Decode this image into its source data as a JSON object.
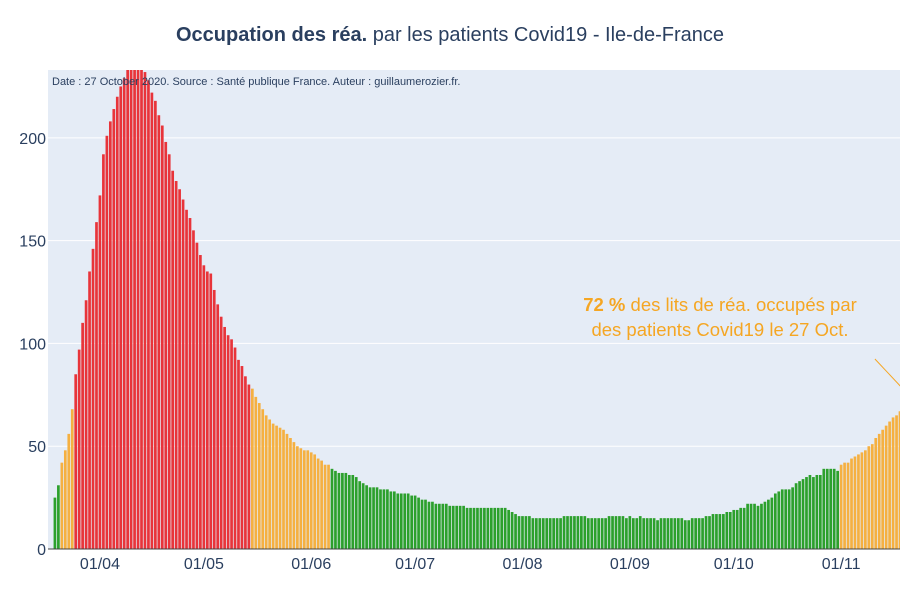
{
  "title": {
    "bold": "Occupation des réa.",
    "rest": " par les patients Covid19 - Ile-de-France"
  },
  "source_note": "Date : 27 October 2020. Source : Santé publique France. Auteur : guillaumerozier.fr.",
  "annotation": {
    "value": "72  %",
    "line1_rest": " des lits de réa. occupés par",
    "line2": "des patients Covid19 le 27 Oct."
  },
  "colors": {
    "plot_bg": "#e5ecf6",
    "grid": "#ffffff",
    "green": "#2ca02c",
    "orange": "#f5b041",
    "red": "#e8343a",
    "annotation": "#f5a623",
    "text": "#2a3f5f"
  },
  "chart_data": {
    "type": "bar",
    "x_start": "2020-03-19",
    "x_end": "2020-10-27",
    "x_range": [
      "2020-03-17",
      "2020-11-18"
    ],
    "ylim": [
      0,
      233
    ],
    "yticks": [
      0,
      50,
      100,
      150,
      200
    ],
    "xtick_labels": [
      "01/04",
      "01/05",
      "01/06",
      "01/07",
      "01/08",
      "01/09",
      "01/10",
      "01/11"
    ],
    "xtick_dates": [
      "2020-04-01",
      "2020-05-01",
      "2020-06-01",
      "2020-07-01",
      "2020-08-01",
      "2020-09-01",
      "2020-10-01",
      "2020-11-01"
    ],
    "values": [
      25,
      31,
      42,
      48,
      56,
      68,
      85,
      97,
      110,
      121,
      135,
      146,
      159,
      172,
      192,
      201,
      208,
      214,
      220,
      225,
      229,
      233,
      233,
      233,
      233,
      233,
      232,
      228,
      222,
      218,
      211,
      206,
      198,
      192,
      184,
      179,
      175,
      170,
      165,
      161,
      155,
      149,
      143,
      138,
      135,
      134,
      126,
      119,
      113,
      108,
      104,
      102,
      98,
      92,
      89,
      84,
      80,
      78,
      74,
      71,
      68,
      65,
      63,
      61,
      60,
      59,
      58,
      56,
      54,
      52,
      50,
      49,
      48,
      48,
      47,
      46,
      44,
      43,
      41,
      41,
      39,
      38,
      37,
      37,
      37,
      36,
      36,
      35,
      33,
      32,
      31,
      30,
      30,
      30,
      29,
      29,
      29,
      28,
      28,
      27,
      27,
      27,
      27,
      26,
      26,
      25,
      24,
      24,
      23,
      23,
      22,
      22,
      22,
      22,
      21,
      21,
      21,
      21,
      21,
      20,
      20,
      20,
      20,
      20,
      20,
      20,
      20,
      20,
      20,
      20,
      20,
      19,
      18,
      17,
      16,
      16,
      16,
      16,
      15,
      15,
      15,
      15,
      15,
      15,
      15,
      15,
      15,
      16,
      16,
      16,
      16,
      16,
      16,
      16,
      15,
      15,
      15,
      15,
      15,
      15,
      16,
      16,
      16,
      16,
      16,
      15,
      16,
      15,
      15,
      16,
      15,
      15,
      15,
      15,
      14,
      15,
      15,
      15,
      15,
      15,
      15,
      15,
      14,
      14,
      15,
      15,
      15,
      15,
      16,
      16,
      17,
      17,
      17,
      17,
      18,
      18,
      19,
      19,
      20,
      20,
      22,
      22,
      22,
      21,
      22,
      23,
      24,
      25,
      27,
      28,
      29,
      29,
      29,
      30,
      32,
      33,
      34,
      35,
      36,
      35,
      36,
      36,
      39,
      39,
      39,
      39,
      38,
      41,
      42,
      42,
      44,
      45,
      46,
      47,
      48,
      50,
      51,
      54,
      56,
      58,
      60,
      62,
      64,
      65,
      67,
      70,
      72
    ]
  }
}
